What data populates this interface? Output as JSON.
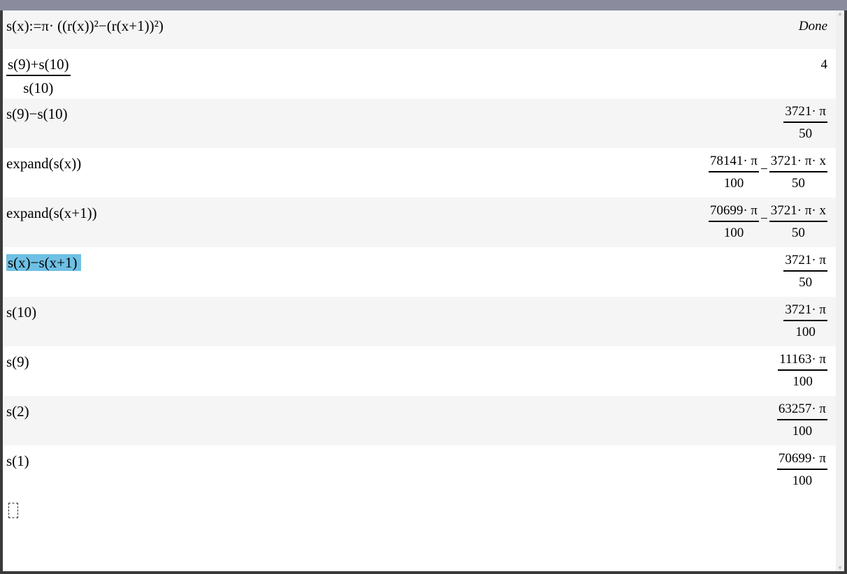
{
  "entries": [
    {
      "input": "s(x):=π· ((r(x))²−(r(x+1))²)",
      "output": {
        "text": "Done",
        "italic": true
      }
    },
    {
      "input_frac": {
        "num": "s(9)+s(10)",
        "den": "s(10)"
      },
      "output": {
        "text": "4"
      }
    },
    {
      "input": "s(9)−s(10)",
      "output": {
        "terms": [
          {
            "num": "3721· π",
            "den": "50"
          }
        ]
      }
    },
    {
      "input": "expand(s(x))",
      "output": {
        "terms": [
          {
            "num": "78141· π",
            "den": "100"
          },
          {
            "num": "3721· π· x",
            "den": "50"
          }
        ],
        "op": "−"
      }
    },
    {
      "input": "expand(s(x+1))",
      "output": {
        "terms": [
          {
            "num": "70699· π",
            "den": "100"
          },
          {
            "num": "3721· π· x",
            "den": "50"
          }
        ],
        "op": "−"
      }
    },
    {
      "input": "s(x)−s(x+1)",
      "selected": true,
      "output": {
        "terms": [
          {
            "num": "3721· π",
            "den": "50"
          }
        ]
      }
    },
    {
      "input": "s(10)",
      "output": {
        "terms": [
          {
            "num": "3721· π",
            "den": "100"
          }
        ]
      }
    },
    {
      "input": "s(9)",
      "output": {
        "terms": [
          {
            "num": "11163· π",
            "den": "100"
          }
        ]
      }
    },
    {
      "input": "s(2)",
      "output": {
        "terms": [
          {
            "num": "63257· π",
            "den": "100"
          }
        ]
      }
    },
    {
      "input": "s(1)",
      "output": {
        "terms": [
          {
            "num": "70699· π",
            "den": "100"
          }
        ]
      }
    }
  ],
  "colors": {
    "selection": "#6ec0e4",
    "title_bar": "#8a8b9c"
  }
}
